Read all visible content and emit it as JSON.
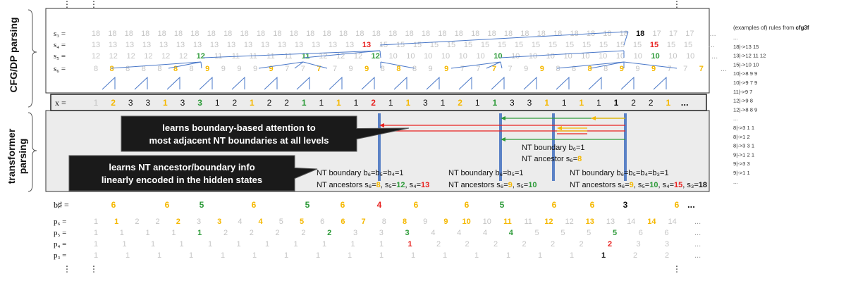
{
  "side_labels": {
    "top": "CFG/DP parsing",
    "middle": "transformer parsing"
  },
  "colors": {
    "gray": "#c4c4c4",
    "orange": "#f5b800",
    "green": "#2e9b3a",
    "red": "#e8211f",
    "black": "#111111",
    "blue": "#4a78c8",
    "bar": "#5b82c6"
  },
  "ellipsis": "...",
  "vdots": "⋮",
  "s_rows": [
    {
      "label": "s₃ =",
      "items": [
        [
          "18",
          "g"
        ],
        [
          "18",
          "g"
        ],
        [
          "18",
          "g"
        ],
        [
          "18",
          "g"
        ],
        [
          "18",
          "g"
        ],
        [
          "18",
          "g"
        ],
        [
          "18",
          "g"
        ],
        [
          "18",
          "g"
        ],
        [
          "18",
          "g"
        ],
        [
          "18",
          "g"
        ],
        [
          "18",
          "g"
        ],
        [
          "18",
          "g"
        ],
        [
          "18",
          "g"
        ],
        [
          "18",
          "g"
        ],
        [
          "18",
          "g"
        ],
        [
          "18",
          "g"
        ],
        [
          "18",
          "g"
        ],
        [
          "18",
          "g"
        ],
        [
          "18",
          "g"
        ],
        [
          "18",
          "g"
        ],
        [
          "18",
          "g"
        ],
        [
          "18",
          "g"
        ],
        [
          "18",
          "g"
        ],
        [
          "18",
          "g"
        ],
        [
          "18",
          "g"
        ],
        [
          "18",
          "g"
        ],
        [
          "18",
          "g"
        ],
        [
          "18",
          "g"
        ],
        [
          "18",
          "g"
        ],
        [
          "18",
          "g"
        ],
        [
          "18",
          "g"
        ],
        [
          "18",
          "g"
        ],
        [
          "18",
          "g"
        ],
        [
          "18",
          "k"
        ],
        [
          "17",
          "g"
        ],
        [
          "17",
          "g"
        ],
        [
          "17",
          "g"
        ]
      ]
    },
    {
      "label": "s₄ =",
      "items": [
        [
          "13",
          "g"
        ],
        [
          "13",
          "g"
        ],
        [
          "13",
          "g"
        ],
        [
          "13",
          "g"
        ],
        [
          "13",
          "g"
        ],
        [
          "13",
          "g"
        ],
        [
          "13",
          "g"
        ],
        [
          "13",
          "g"
        ],
        [
          "13",
          "g"
        ],
        [
          "13",
          "g"
        ],
        [
          "13",
          "g"
        ],
        [
          "13",
          "g"
        ],
        [
          "13",
          "g"
        ],
        [
          "13",
          "g"
        ],
        [
          "13",
          "g"
        ],
        [
          "13",
          "g"
        ],
        [
          "13",
          "r"
        ],
        [
          "15",
          "g"
        ],
        [
          "15",
          "g"
        ],
        [
          "15",
          "g"
        ],
        [
          "15",
          "g"
        ],
        [
          "15",
          "g"
        ],
        [
          "15",
          "g"
        ],
        [
          "15",
          "g"
        ],
        [
          "15",
          "g"
        ],
        [
          "15",
          "g"
        ],
        [
          "15",
          "g"
        ],
        [
          "15",
          "g"
        ],
        [
          "15",
          "g"
        ],
        [
          "15",
          "g"
        ],
        [
          "15",
          "g"
        ],
        [
          "15",
          "g"
        ],
        [
          "15",
          "g"
        ],
        [
          "15",
          "r"
        ],
        [
          "15",
          "g"
        ],
        [
          "15",
          "g"
        ]
      ]
    },
    {
      "label": "s₅ =",
      "items": [
        [
          "12",
          "g"
        ],
        [
          "12",
          "g"
        ],
        [
          "12",
          "g"
        ],
        [
          "12",
          "g"
        ],
        [
          "12",
          "g"
        ],
        [
          "12",
          "g"
        ],
        [
          "12",
          "n"
        ],
        [
          "11",
          "g"
        ],
        [
          "11",
          "g"
        ],
        [
          "11",
          "g"
        ],
        [
          "11",
          "g"
        ],
        [
          "11",
          "g"
        ],
        [
          "11",
          "n"
        ],
        [
          "12",
          "g"
        ],
        [
          "12",
          "g"
        ],
        [
          "12",
          "g"
        ],
        [
          "12",
          "n"
        ],
        [
          "10",
          "g"
        ],
        [
          "10",
          "g"
        ],
        [
          "10",
          "g"
        ],
        [
          "10",
          "g"
        ],
        [
          "10",
          "g"
        ],
        [
          "10",
          "g"
        ],
        [
          "10",
          "n"
        ],
        [
          "10",
          "g"
        ],
        [
          "10",
          "g"
        ],
        [
          "10",
          "g"
        ],
        [
          "10",
          "g"
        ],
        [
          "10",
          "g"
        ],
        [
          "10",
          "g"
        ],
        [
          "10",
          "g"
        ],
        [
          "10",
          "g"
        ],
        [
          "10",
          "n"
        ],
        [
          "10",
          "g"
        ],
        [
          "10",
          "g"
        ]
      ]
    },
    {
      "label": "s₆ =",
      "items": [
        [
          "8",
          "g"
        ],
        [
          "8",
          "o"
        ],
        [
          "8",
          "g"
        ],
        [
          "8",
          "g"
        ],
        [
          "8",
          "g"
        ],
        [
          "8",
          "o"
        ],
        [
          "8",
          "g"
        ],
        [
          "9",
          "o"
        ],
        [
          "9",
          "g"
        ],
        [
          "9",
          "g"
        ],
        [
          "9",
          "g"
        ],
        [
          "9",
          "o"
        ],
        [
          "7",
          "g"
        ],
        [
          "7",
          "g"
        ],
        [
          "7",
          "o"
        ],
        [
          "7",
          "g"
        ],
        [
          "9",
          "g"
        ],
        [
          "9",
          "o"
        ],
        [
          "8",
          "g"
        ],
        [
          "8",
          "o"
        ],
        [
          "8",
          "g"
        ],
        [
          "9",
          "g"
        ],
        [
          "9",
          "o"
        ],
        [
          "7",
          "g"
        ],
        [
          "7",
          "g"
        ],
        [
          "7",
          "o"
        ],
        [
          "7",
          "g"
        ],
        [
          "9",
          "g"
        ],
        [
          "9",
          "o"
        ],
        [
          "8",
          "g"
        ],
        [
          "8",
          "g"
        ],
        [
          "8",
          "o"
        ],
        [
          "8",
          "g"
        ],
        [
          "9",
          "o"
        ],
        [
          "9",
          "g"
        ],
        [
          "9",
          "o"
        ],
        [
          "7",
          "g"
        ],
        [
          "7",
          "g"
        ],
        [
          "7",
          "o"
        ]
      ]
    }
  ],
  "x_row": {
    "label": "x =",
    "items": [
      [
        "1",
        "g"
      ],
      [
        "2",
        "o"
      ],
      [
        "3",
        "k"
      ],
      [
        "3",
        "k"
      ],
      [
        "1",
        "o"
      ],
      [
        "3",
        "k"
      ],
      [
        "3",
        "n"
      ],
      [
        "1",
        "k"
      ],
      [
        "2",
        "k"
      ],
      [
        "1",
        "o"
      ],
      [
        "2",
        "k"
      ],
      [
        "2",
        "k"
      ],
      [
        "1",
        "n"
      ],
      [
        "1",
        "k"
      ],
      [
        "1",
        "o"
      ],
      [
        "1",
        "k"
      ],
      [
        "2",
        "r"
      ],
      [
        "1",
        "k"
      ],
      [
        "1",
        "o"
      ],
      [
        "3",
        "k"
      ],
      [
        "1",
        "k"
      ],
      [
        "2",
        "o"
      ],
      [
        "1",
        "k"
      ],
      [
        "1",
        "n"
      ],
      [
        "3",
        "k"
      ],
      [
        "3",
        "k"
      ],
      [
        "1",
        "o"
      ],
      [
        "1",
        "k"
      ],
      [
        "1",
        "o"
      ],
      [
        "1",
        "k"
      ],
      [
        "1",
        "b"
      ],
      [
        "2",
        "k"
      ],
      [
        "2",
        "k"
      ],
      [
        "1",
        "o"
      ]
    ]
  },
  "callouts": [
    {
      "line1": "learns boundary-based attention to",
      "line2": "most adjacent NT boundaries at all levels"
    },
    {
      "line1": "learns NT ancestor/boundary info",
      "line2": "linearly encoded in the hidden states"
    }
  ],
  "annotations": {
    "single": {
      "b": "NT boundary b₆=1",
      "a_prefix": "NT ancestor s₆=",
      "a_val": "8"
    },
    "red": {
      "b": "NT boundary b₆=b₅=b₄=1",
      "a_prefix": "NT ancestors s₆=",
      "v1": "8",
      "mid1": ", s₅=",
      "v2": "12",
      "mid2": ", s₄=",
      "v3": "13"
    },
    "green": {
      "b": "NT boundary b₆=b₅=1",
      "a_prefix": "NT ancestors s₆=",
      "v1": "9",
      "mid1": ", s₅=",
      "v2": "10"
    },
    "black": {
      "b": "NT boundary b₆=b₅=b₄=b₃=1",
      "a_prefix": "NT ancestors s₆=",
      "v1": "9",
      "mid1": ", s₅=",
      "v2": "10",
      "mid2": ", s₄=",
      "v3": "15",
      "mid3": ", s₃=",
      "v4": "18"
    }
  },
  "b_row": {
    "label": "b♯ =",
    "items": [
      [
        "6",
        "o"
      ],
      [
        "6",
        "o"
      ],
      [
        "5",
        "n"
      ],
      [
        "6",
        "o"
      ],
      [
        "5",
        "n"
      ],
      [
        "6",
        "o"
      ],
      [
        "4",
        "r"
      ],
      [
        "6",
        "o"
      ],
      [
        "6",
        "o"
      ],
      [
        "5",
        "n"
      ],
      [
        "6",
        "o"
      ],
      [
        "6",
        "o"
      ],
      [
        "3",
        "k"
      ],
      [
        "6",
        "o"
      ]
    ]
  },
  "p_rows": [
    {
      "label": "p₆ =",
      "items": [
        [
          "1",
          "g"
        ],
        [
          "1",
          "o"
        ],
        [
          "2",
          "g"
        ],
        [
          "2",
          "g"
        ],
        [
          "2",
          "o"
        ],
        [
          "3",
          "g"
        ],
        [
          "3",
          "o"
        ],
        [
          "4",
          "g"
        ],
        [
          "4",
          "o"
        ],
        [
          "5",
          "g"
        ],
        [
          "5",
          "o"
        ],
        [
          "6",
          "g"
        ],
        [
          "6",
          "o"
        ],
        [
          "7",
          "o"
        ],
        [
          "8",
          "g"
        ],
        [
          "8",
          "o"
        ],
        [
          "9",
          "g"
        ],
        [
          "9",
          "o"
        ],
        [
          "10",
          "o"
        ],
        [
          "10",
          "g"
        ],
        [
          "11",
          "o"
        ],
        [
          "11",
          "g"
        ],
        [
          "12",
          "o"
        ],
        [
          "12",
          "g"
        ],
        [
          "13",
          "o"
        ],
        [
          "13",
          "g"
        ],
        [
          "14",
          "g"
        ],
        [
          "14",
          "o"
        ],
        [
          "14",
          "g"
        ]
      ]
    },
    {
      "label": "p₅ =",
      "items": [
        [
          "1",
          "g"
        ],
        [
          "1",
          "g"
        ],
        [
          "1",
          "g"
        ],
        [
          "1",
          "g"
        ],
        [
          "1",
          "n"
        ],
        [
          "2",
          "g"
        ],
        [
          "2",
          "g"
        ],
        [
          "2",
          "g"
        ],
        [
          "2",
          "g"
        ],
        [
          "2",
          "n"
        ],
        [
          "3",
          "g"
        ],
        [
          "3",
          "g"
        ],
        [
          "3",
          "n"
        ],
        [
          "4",
          "g"
        ],
        [
          "4",
          "g"
        ],
        [
          "4",
          "g"
        ],
        [
          "4",
          "n"
        ],
        [
          "5",
          "g"
        ],
        [
          "5",
          "g"
        ],
        [
          "5",
          "g"
        ],
        [
          "5",
          "n"
        ],
        [
          "6",
          "g"
        ],
        [
          "6",
          "g"
        ]
      ]
    },
    {
      "label": "p₄ =",
      "items": [
        [
          "1",
          "g"
        ],
        [
          "1",
          "g"
        ],
        [
          "1",
          "g"
        ],
        [
          "1",
          "g"
        ],
        [
          "1",
          "g"
        ],
        [
          "1",
          "g"
        ],
        [
          "1",
          "g"
        ],
        [
          "1",
          "g"
        ],
        [
          "1",
          "g"
        ],
        [
          "1",
          "g"
        ],
        [
          "1",
          "g"
        ],
        [
          "1",
          "r"
        ],
        [
          "2",
          "g"
        ],
        [
          "2",
          "g"
        ],
        [
          "2",
          "g"
        ],
        [
          "2",
          "g"
        ],
        [
          "2",
          "g"
        ],
        [
          "2",
          "g"
        ],
        [
          "2",
          "r"
        ],
        [
          "3",
          "g"
        ],
        [
          "3",
          "g"
        ]
      ]
    },
    {
      "label": "p₃ =",
      "items": [
        [
          "1",
          "g"
        ],
        [
          "1",
          "g"
        ],
        [
          "1",
          "g"
        ],
        [
          "1",
          "g"
        ],
        [
          "1",
          "g"
        ],
        [
          "1",
          "g"
        ],
        [
          "1",
          "g"
        ],
        [
          "1",
          "g"
        ],
        [
          "1",
          "g"
        ],
        [
          "1",
          "g"
        ],
        [
          "1",
          "g"
        ],
        [
          "1",
          "g"
        ],
        [
          "1",
          "g"
        ],
        [
          "1",
          "g"
        ],
        [
          "1",
          "g"
        ],
        [
          "1",
          "g"
        ],
        [
          "1",
          "k"
        ],
        [
          "2",
          "g"
        ],
        [
          "2",
          "g"
        ]
      ]
    }
  ],
  "rules_panel": {
    "title_prefix": "(examples of) rules from ",
    "title_bold": "cfg3f",
    "rules": [
      "...",
      "18|->13 15",
      "13|->12 11 12",
      "15|->10 10",
      "10|->8 9 9",
      "10|->9 7 9",
      "11|->9 7",
      "12|->9 8",
      "12|->8 8 9",
      "...",
      "8|->3 1 1",
      "8|->1 2",
      "8|->3 3 1",
      "9|->1 2 1",
      "9|->3 3",
      "9|->1 1",
      "..."
    ]
  }
}
